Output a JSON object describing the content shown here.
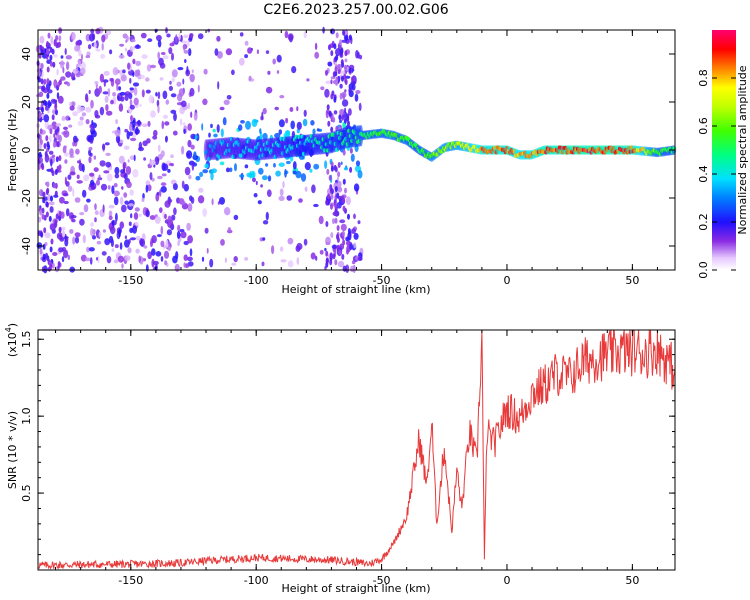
{
  "title": "C2E6.2023.257.00.02.G06",
  "chart_data": [
    {
      "type": "heatmap",
      "xlabel": "Height of straight line (km)",
      "ylabel": "Frequency (Hz)",
      "xlim": [
        -187,
        67
      ],
      "ylim": [
        -50,
        50
      ],
      "xticks": [
        "-150",
        "-100",
        "-50",
        "0",
        "50"
      ],
      "xtick_values": [
        -150,
        -100,
        -50,
        0,
        50
      ],
      "yticks": [
        "-40",
        "-20",
        "0",
        "20",
        "40"
      ],
      "ytick_values": [
        -40,
        -20,
        0,
        20,
        40
      ],
      "colorbar": {
        "label": "Normalized spectral amplitude",
        "range": [
          0.0,
          1.0
        ],
        "ticks": [
          "0.0",
          "0.2",
          "0.4",
          "0.6",
          "0.8"
        ],
        "tick_values": [
          0.0,
          0.2,
          0.4,
          0.6,
          0.8
        ]
      },
      "ridge": {
        "x": [
          -120,
          -110,
          -100,
          -90,
          -80,
          -70,
          -65,
          -58,
          -50,
          -45,
          -40,
          -35,
          -30,
          -25,
          -20,
          -15,
          -10,
          -5,
          0,
          5,
          10,
          15,
          20,
          30,
          40,
          50,
          60,
          67
        ],
        "y": [
          0,
          1,
          0,
          1,
          2,
          3,
          5,
          6,
          7,
          6,
          4,
          0,
          -3,
          1,
          2,
          1,
          0,
          0,
          0,
          -2,
          -2,
          0,
          0,
          0,
          0,
          0,
          -1,
          0
        ],
        "amplitude": [
          0.35,
          0.4,
          0.4,
          0.42,
          0.45,
          0.5,
          0.5,
          0.55,
          0.6,
          0.62,
          0.6,
          0.55,
          0.65,
          0.7,
          0.72,
          0.8,
          0.9,
          0.9,
          0.92,
          0.85,
          0.88,
          0.95,
          0.95,
          0.97,
          0.97,
          0.95,
          0.6,
          0.55
        ]
      },
      "noise_region": {
        "x_range": [
          -187,
          -58
        ],
        "note": ""
      }
    },
    {
      "type": "line",
      "xlabel": "Height of straight line (km)",
      "ylabel": "SNR (10 * v/v)",
      "yscale_label": "(x10",
      "yscale_exp": "4",
      "yscale_close": ")",
      "xlim": [
        -187,
        67
      ],
      "ylim": [
        0,
        15600
      ],
      "xticks": [
        "-150",
        "-100",
        "-50",
        "0",
        "50"
      ],
      "xtick_values": [
        -150,
        -100,
        -50,
        0,
        50
      ],
      "yticks": [
        "0.5",
        "1.0",
        "1.5"
      ],
      "ytick_values": [
        5000,
        10000,
        15000
      ],
      "color": "#e83a3a",
      "series": [
        {
          "name": "SNR",
          "x": [
            -187,
            -170,
            -150,
            -130,
            -120,
            -110,
            -100,
            -90,
            -80,
            -70,
            -60,
            -55,
            -50,
            -45,
            -40,
            -35,
            -32,
            -30,
            -28,
            -25,
            -22,
            -20,
            -18,
            -15,
            -12,
            -10,
            -9,
            -8,
            -5,
            0,
            5,
            10,
            15,
            20,
            25,
            30,
            35,
            40,
            45,
            50,
            55,
            60,
            67
          ],
          "y": [
            300,
            350,
            380,
            450,
            600,
            700,
            800,
            750,
            700,
            650,
            500,
            400,
            700,
            1800,
            3500,
            8500,
            5500,
            9500,
            3000,
            8000,
            2500,
            6500,
            4000,
            9000,
            7000,
            15500,
            500,
            9000,
            8200,
            10500,
            9800,
            11500,
            12000,
            12800,
            12500,
            13500,
            13800,
            14000,
            14200,
            14300,
            14100,
            14400,
            13000
          ]
        }
      ]
    }
  ]
}
